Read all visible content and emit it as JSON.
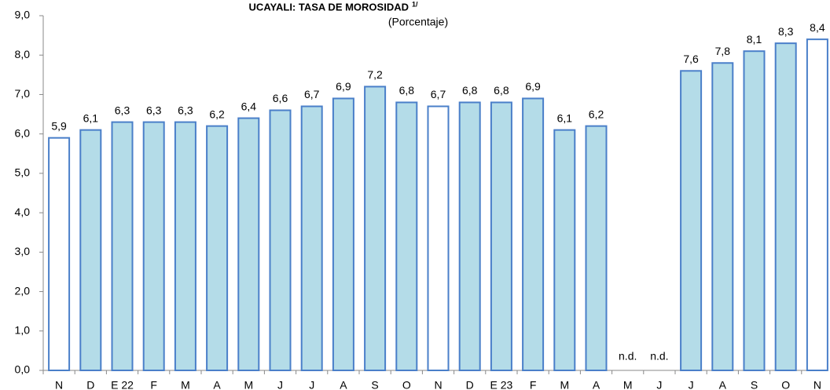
{
  "chart_data": {
    "type": "bar",
    "title": "UCAYALI: TASA DE MOROSIDAD",
    "title_note": "1/",
    "subtitle": "(Porcentaje)",
    "categories": [
      "N",
      "D",
      "E 22",
      "F",
      "M",
      "A",
      "M",
      "J",
      "J",
      "A",
      "S",
      "O",
      "N",
      "D",
      "E 23",
      "F",
      "M",
      "A",
      "M",
      "J",
      "J",
      "A",
      "S",
      "O",
      "N"
    ],
    "values": [
      5.9,
      6.1,
      6.3,
      6.3,
      6.3,
      6.2,
      6.4,
      6.6,
      6.7,
      6.9,
      7.2,
      6.8,
      6.7,
      6.8,
      6.8,
      6.9,
      6.1,
      6.2,
      null,
      null,
      7.6,
      7.8,
      8.1,
      8.3,
      8.4
    ],
    "value_labels": [
      "5,9",
      "6,1",
      "6,3",
      "6,3",
      "6,3",
      "6,2",
      "6,4",
      "6,6",
      "6,7",
      "6,9",
      "7,2",
      "6,8",
      "6,7",
      "6,8",
      "6,8",
      "6,9",
      "6,1",
      "6,2",
      "n.d.",
      "n.d.",
      "7,6",
      "7,8",
      "8,1",
      "8,3",
      "8,4"
    ],
    "colors": [
      "#ffffff",
      "#b4dce8",
      "#b4dce8",
      "#b4dce8",
      "#b4dce8",
      "#b4dce8",
      "#b4dce8",
      "#b4dce8",
      "#b4dce8",
      "#b4dce8",
      "#b4dce8",
      "#b4dce8",
      "#ffffff",
      "#b4dce8",
      "#b4dce8",
      "#b4dce8",
      "#b4dce8",
      "#b4dce8",
      "#b4dce8",
      "#b4dce8",
      "#b4dce8",
      "#b4dce8",
      "#b4dce8",
      "#b4dce8",
      "#ffffff"
    ],
    "edge_color": "#4a7fc9",
    "ylim": [
      0,
      9
    ],
    "yticks": [
      {
        "value": 0,
        "label": "0,0"
      },
      {
        "value": 1,
        "label": "1,0"
      },
      {
        "value": 2,
        "label": "2,0"
      },
      {
        "value": 3,
        "label": "3,0"
      },
      {
        "value": 4,
        "label": "4,0"
      },
      {
        "value": 5,
        "label": "5,0"
      },
      {
        "value": 6,
        "label": "6,0"
      },
      {
        "value": 7,
        "label": "7,0"
      },
      {
        "value": 8,
        "label": "8,0"
      },
      {
        "value": 9,
        "label": "9,0"
      }
    ],
    "grid": false
  }
}
